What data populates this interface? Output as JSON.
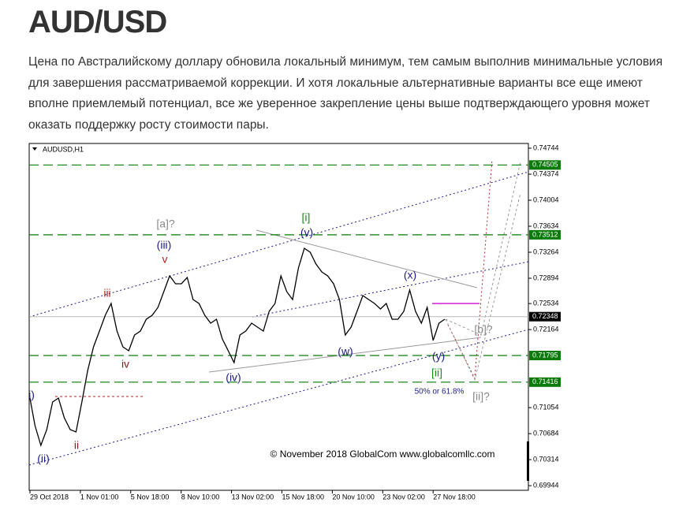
{
  "header": {
    "title": "AUD/USD"
  },
  "article": {
    "paragraph": "Цена по Австралийскому доллару обновила локальный минимум, тем самым выполнив минимальные условия для завершения рассматриваемой коррекции. И хотя локальные альтернативные варианты все еще имеют вполне приемлемый потенциал, все же уверенное закрепление цены выше подтверждающего уровня может оказать поддержку росту стоимости пары."
  },
  "chart": {
    "symbol": "AUDUSD,H1",
    "yticks": [
      0.74744,
      0.74374,
      0.74004,
      0.73634,
      0.73264,
      0.72894,
      0.72534,
      0.72164,
      0.71054,
      0.70684,
      0.70314,
      0.69944
    ],
    "levels": [
      {
        "value": 0.74505,
        "color": "#0a7a0a"
      },
      {
        "value": 0.73512,
        "color": "#0a7a0a"
      },
      {
        "value": 0.71795,
        "color": "#0a7a0a"
      },
      {
        "value": 0.71416,
        "color": "#0a7a0a"
      }
    ],
    "current_price": 0.72348,
    "xticks": [
      "29 Oct 2018",
      "1 Nov 01:00",
      "5 Nov 18:00",
      "8 Nov 10:00",
      "13 Nov 02:00",
      "15 Nov 18:00",
      "20 Nov 10:00",
      "23 Nov 02:00",
      "27 Nov 18:00"
    ],
    "price": [
      0.71246,
      0.70797,
      0.70517,
      0.70741,
      0.71134,
      0.7119,
      0.70909,
      0.70741,
      0.70708,
      0.71134,
      0.71582,
      0.71919,
      0.72143,
      0.72367,
      0.72535,
      0.72143,
      0.71919,
      0.71863,
      0.72087,
      0.72143,
      0.72311,
      0.72367,
      0.72479,
      0.72703,
      0.72928,
      0.72816,
      0.72816,
      0.72905,
      0.72591,
      0.72535,
      0.72367,
      0.72255,
      0.72311,
      0.72031,
      0.71863,
      0.71694,
      0.72087,
      0.72143,
      0.72255,
      0.72199,
      0.72143,
      0.72423,
      0.72535,
      0.72928,
      0.72703,
      0.72591,
      0.7304,
      0.7332,
      0.73264,
      0.73096,
      0.72984,
      0.72928,
      0.72816,
      0.72591,
      0.72087,
      0.72199,
      0.72423,
      0.72647,
      0.72591,
      0.72535,
      0.72457,
      0.72535,
      0.72311,
      0.72311,
      0.72423,
      0.72726,
      0.72423,
      0.72255,
      0.72479,
      0.72008,
      0.72255,
      0.72311
    ],
    "annotations": [
      {
        "text": "i)",
        "color": "#1c1c8c"
      },
      {
        "text": "(ii)",
        "color": "#1c1c8c"
      },
      {
        "text": "ii",
        "color": "#8b1a1a"
      },
      {
        "text": "iii",
        "color": "#b22222"
      },
      {
        "text": "iv",
        "color": "#8b1a1a"
      },
      {
        "text": "v",
        "color": "#b22222"
      },
      {
        "text": "(iii)",
        "color": "#1c1c8c"
      },
      {
        "text": "[a]?",
        "color": "#888888"
      },
      {
        "text": "(iv)",
        "color": "#1c1c8c"
      },
      {
        "text": "[i]",
        "color": "#1a8a1a"
      },
      {
        "text": "(v)",
        "color": "#1c1c8c"
      },
      {
        "text": "(x)",
        "color": "#1c1c8c"
      },
      {
        "text": "(w)",
        "color": "#1c1c8c"
      },
      {
        "text": "(y)",
        "color": "#1c1c8c"
      },
      {
        "text": "[ii]",
        "color": "#1a8a1a"
      },
      {
        "text": "50% or 61.8%",
        "color": "#1c1c8c"
      },
      {
        "text": "[b]?",
        "color": "#888888"
      },
      {
        "text": "[ii]?",
        "color": "#888888"
      }
    ],
    "copyright": "© November 2018 GlobalCom www.globalcomllc.com"
  }
}
